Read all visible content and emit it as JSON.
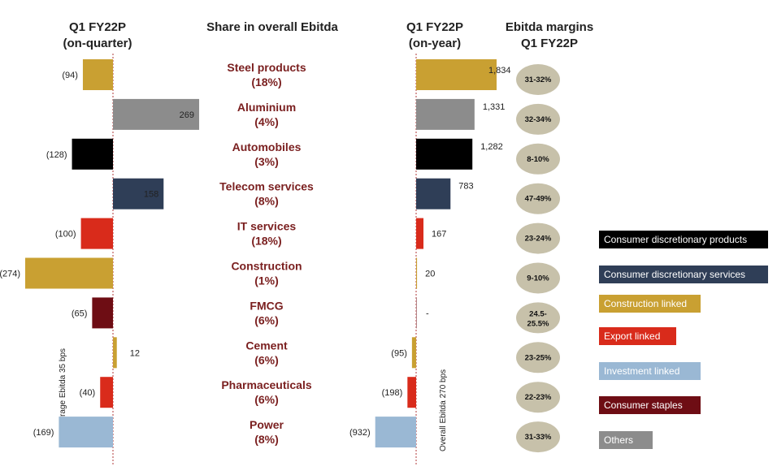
{
  "headers": {
    "q1_quarter": [
      "Q1 FY22P",
      "(on-quarter)"
    ],
    "share": "Share in overall Ebitda",
    "q1_year": [
      "Q1 FY22P",
      "(on-year)"
    ],
    "margins": [
      "Ebitda margins",
      "Q1 FY22P"
    ]
  },
  "avg_label_left": "Average Ebitda 35 bps",
  "avg_label_right": "Overall Ebitda 270 bps",
  "colors": {
    "Consumer discretionary products": "#000000",
    "Consumer discretionary services": "#2f3e57",
    "Construction linked": "#c9a032",
    "Export linked": "#d92b1b",
    "Investment linked": "#9ab8d4",
    "Consumer staples": "#6e0d14",
    "Others": "#8c8c8c",
    "pill": "#c7c1aa"
  },
  "legend": [
    {
      "label": "Consumer discretionary products",
      "group": "Consumer discretionary products"
    },
    {
      "label": "Consumer discretionary services",
      "group": "Consumer discretionary services"
    },
    {
      "label": "Construction linked",
      "group": "Construction linked"
    },
    {
      "label": "Export linked",
      "group": "Export linked"
    },
    {
      "label": "Investment linked",
      "group": "Investment linked"
    },
    {
      "label": "Consumer staples",
      "group": "Consumer staples"
    },
    {
      "label": "Others",
      "group": "Others"
    }
  ],
  "chart_data": {
    "type": "bar",
    "orientation": "horizontal",
    "categories": [
      "Steel products",
      "Aluminium",
      "Automobiles",
      "Telecom services",
      "IT services",
      "Construction",
      "FMCG",
      "Cement",
      "Pharmaceuticals",
      "Power"
    ],
    "shares": [
      "(18%)",
      "(4%)",
      "(3%)",
      "(8%)",
      "(18%)",
      "(1%)",
      "(6%)",
      "(6%)",
      "(6%)",
      "(8%)"
    ],
    "groups": [
      "Construction linked",
      "Others",
      "Consumer discretionary products",
      "Consumer discretionary services",
      "Export linked",
      "Construction linked",
      "Consumer staples",
      "Construction linked",
      "Export linked",
      "Investment linked"
    ],
    "series": [
      {
        "values": [
          -94,
          269,
          -128,
          158,
          -100,
          -274,
          -65,
          12,
          -40,
          -169
        ],
        "labels": [
          "(94)",
          "269",
          "(128)",
          "158",
          "(100)",
          "(274)",
          "(65)",
          "12",
          "(40)",
          "(169)"
        ]
      },
      {
        "values": [
          1834,
          1331,
          1282,
          783,
          167,
          20,
          0,
          -95,
          -198,
          -932
        ],
        "labels": [
          "1,834",
          "1,331",
          "1,282",
          "783",
          "167",
          "20",
          "-",
          "(95)",
          "(198)",
          "(932)"
        ]
      }
    ],
    "margins": [
      "31-32%",
      "32-34%",
      "8-10%",
      "47-49%",
      "23-24%",
      "9-10%",
      "24.5-25.5%",
      "23-25%",
      "22-23%",
      "31-33%"
    ]
  }
}
